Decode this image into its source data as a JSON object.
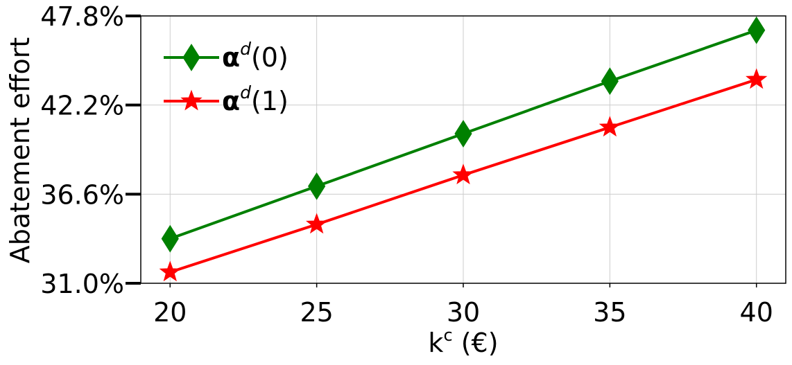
{
  "chart_data": {
    "type": "line",
    "xlabel": "k",
    "xlabel_sup": "c",
    "xlabel_unit": "(€)",
    "ylabel": "Abatement effort",
    "x": [
      20,
      25,
      30,
      35,
      40
    ],
    "xlim": [
      19,
      41
    ],
    "ylim": [
      31.0,
      47.8
    ],
    "yticks": [
      31.0,
      36.6,
      42.2,
      47.8
    ],
    "ytick_labels": [
      "31.0%",
      "36.6%",
      "42.2%",
      "47.8%"
    ],
    "xtick_labels": [
      "20",
      "25",
      "30",
      "35",
      "40"
    ],
    "grid": true,
    "legend_position": "top-left",
    "series": [
      {
        "name_main": "α",
        "name_sup": "d",
        "name_suffix": "(0)",
        "color": "#008000",
        "marker": "diamond",
        "values": [
          33.8,
          37.1,
          40.4,
          43.7,
          46.9
        ]
      },
      {
        "name_main": "α",
        "name_sup": "d",
        "name_suffix": "(1)",
        "color": "#ff0000",
        "marker": "star",
        "values": [
          31.7,
          34.7,
          37.8,
          40.8,
          43.8
        ]
      }
    ]
  }
}
